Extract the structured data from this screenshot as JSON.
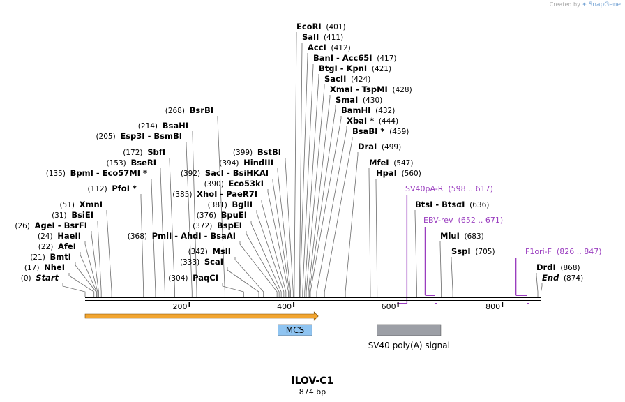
{
  "credit": {
    "prefix": "Created by",
    "brand": "SnapGene"
  },
  "plasmid": {
    "name": "iLOV-C1",
    "length": "874 bp"
  },
  "sites": [
    {
      "label": "EcoRI",
      "pos": "(401)",
      "bp": 401
    },
    {
      "label": "SalI",
      "pos": "(411)",
      "bp": 411
    },
    {
      "label": "AccI",
      "pos": "(412)",
      "bp": 412
    },
    {
      "label": "BanI  -  Acc65I",
      "pos": "(417)",
      "bp": 417
    },
    {
      "label": "BtgI  -  KpnI",
      "pos": "(421)",
      "bp": 421
    },
    {
      "label": "SacII",
      "pos": "(424)",
      "bp": 424
    },
    {
      "label": "XmaI  -  TspMI",
      "pos": "(428)",
      "bp": 428
    },
    {
      "label": "SmaI",
      "pos": "(430)",
      "bp": 430
    },
    {
      "label": "BamHI",
      "pos": "(432)",
      "bp": 432
    },
    {
      "label": "XbaI *",
      "pos": "(444)",
      "bp": 444
    },
    {
      "label": "BsaBI *",
      "pos": "(459)",
      "bp": 459
    },
    {
      "label": "DraI",
      "pos": "(499)",
      "bp": 499
    },
    {
      "label": "MfeI",
      "pos": "(547)",
      "bp": 547
    },
    {
      "label": "HpaI",
      "pos": "(560)",
      "bp": 560
    },
    {
      "label": "BtsI  -  BtsαI",
      "pos": "(636)",
      "bp": 636
    },
    {
      "label": "MluI",
      "pos": "(683)",
      "bp": 683
    },
    {
      "label": "SspI",
      "pos": "(705)",
      "bp": 705
    },
    {
      "label": "DrdI",
      "pos": "(868)",
      "bp": 868
    },
    {
      "label": "End",
      "pos": "(874)",
      "bp": 874,
      "italic": true
    },
    {
      "label": "BsrBI",
      "pos": "(268)",
      "bp": 268
    },
    {
      "label": "BsaHI",
      "pos": "(214)",
      "bp": 214
    },
    {
      "label": "Esp3I  -  BsmBI",
      "pos": "(205)",
      "bp": 205
    },
    {
      "label": "SbfI",
      "pos": "(172)",
      "bp": 172
    },
    {
      "label": "BseRI",
      "pos": "(153)",
      "bp": 153
    },
    {
      "label": "BpmI  -  Eco57MI *",
      "pos": "(135)",
      "bp": 135
    },
    {
      "label": "PfoI *",
      "pos": "(112)",
      "bp": 112
    },
    {
      "label": "XmnI",
      "pos": "(51)",
      "bp": 51
    },
    {
      "label": "BsiEI",
      "pos": "(31)",
      "bp": 31
    },
    {
      "label": "AgeI  -  BsrFI",
      "pos": "(26)",
      "bp": 26
    },
    {
      "label": "HaeII",
      "pos": "(24)",
      "bp": 24
    },
    {
      "label": "AfeI",
      "pos": "(22)",
      "bp": 22
    },
    {
      "label": "BmtI",
      "pos": "(21)",
      "bp": 21
    },
    {
      "label": "NheI",
      "pos": "(17)",
      "bp": 17
    },
    {
      "label": "Start",
      "pos": "(0)",
      "bp": 0,
      "italic": true
    },
    {
      "label": "BstBI",
      "pos": "(399)",
      "bp": 399
    },
    {
      "label": "HindIII",
      "pos": "(394)",
      "bp": 394
    },
    {
      "label": "SacI  -  BsiHKAI",
      "pos": "(392)",
      "bp": 392
    },
    {
      "label": "Eco53kI",
      "pos": "(390)",
      "bp": 390
    },
    {
      "label": "XhoI  -  PaeR7I",
      "pos": "(385)",
      "bp": 385
    },
    {
      "label": "BglII",
      "pos": "(381)",
      "bp": 381
    },
    {
      "label": "BpuEI",
      "pos": "(376)",
      "bp": 376
    },
    {
      "label": "PmlI  -  AhdI  -  BsaAI",
      "pos": "(368)",
      "bp": 368
    },
    {
      "label": "BspEI",
      "pos": "(372)",
      "bp": 372
    },
    {
      "label": "MslI",
      "pos": "(342)",
      "bp": 342
    },
    {
      "label": "ScaI",
      "pos": "(333)",
      "bp": 333
    },
    {
      "label": "PaqCI",
      "pos": "(304)",
      "bp": 304
    }
  ],
  "primers": [
    {
      "label": "SV40pA-R",
      "range": "(598 .. 617)",
      "start": 598,
      "end": 617
    },
    {
      "label": "EBV-rev",
      "range": "(652 .. 671)",
      "start": 652,
      "end": 671
    },
    {
      "label": "F1ori-F",
      "range": "(826 .. 847)",
      "start": 826,
      "end": 847
    }
  ],
  "ticks": [
    "200",
    "400",
    "600",
    "800"
  ],
  "features": [
    {
      "label": "MCS",
      "start": 370,
      "end": 435,
      "color": "#8fc4f1"
    },
    {
      "label": "SV40 poly(A) signal",
      "start": 560,
      "end": 682,
      "color": "#9c9fa6"
    }
  ],
  "orf": {
    "start": 0,
    "end": 447,
    "color": "#f2a530"
  },
  "colors": {
    "primer": "#9a3dbf",
    "line": "#6b6b6b",
    "backbone": "#000000"
  }
}
